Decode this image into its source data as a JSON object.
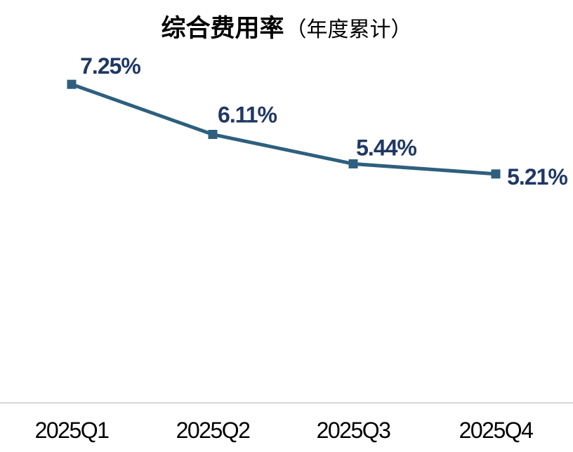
{
  "window": {
    "background": "#FFFFFF"
  },
  "header": {
    "title_bold": "综合费用率",
    "title_paren": "（年度累计）"
  },
  "chart_data": {
    "type": "line",
    "title": "综合费用率（年度累计）",
    "categories": [
      "2025Q1",
      "2025Q2",
      "2025Q3",
      "2025Q4"
    ],
    "series": [
      {
        "name": "综合费用率（年度累计）",
        "values": [
          7.25,
          6.11,
          5.44,
          5.21
        ]
      }
    ],
    "data_labels": [
      "7.25%",
      "6.11%",
      "5.44%",
      "5.21%"
    ],
    "xlabel": "",
    "ylabel": "",
    "ylim": [
      0,
      8
    ],
    "grid": false,
    "legend": "none",
    "marker": "square",
    "colors": {
      "line": "#2E5F7E",
      "marker": "#2E5F7E",
      "data_label": "#1F3864",
      "axis_line": "#D9D9D9",
      "axis_text": "#000000",
      "title_text": "#000000"
    }
  }
}
